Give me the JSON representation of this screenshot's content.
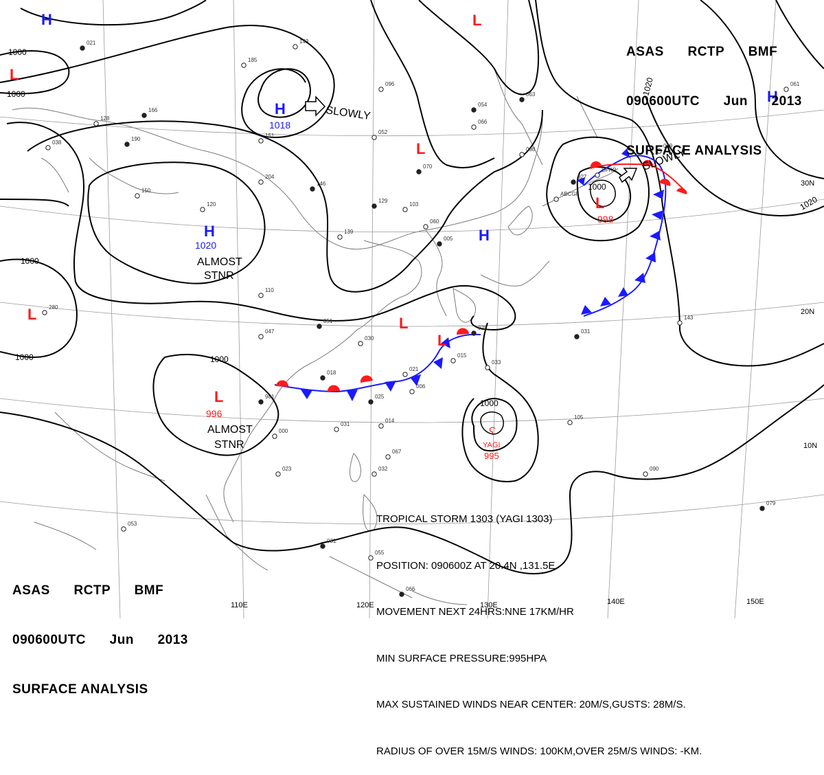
{
  "header_top": {
    "line1": [
      "ASAS",
      "RCTP",
      "BMF"
    ],
    "line2": [
      "090600UTC",
      "Jun",
      "2013"
    ],
    "line3": "SURFACE ANALYSIS"
  },
  "header_bottom": {
    "line1": [
      "ASAS",
      "RCTP",
      "BMF"
    ],
    "line2": [
      "090600UTC",
      "Jun",
      "2013"
    ],
    "line3": "SURFACE ANALYSIS"
  },
  "storm_info": [
    "TROPICAL STORM 1303 (YAGI 1303)",
    "POSITION: 090600Z AT 20.4N ,131.5E.",
    "MOVEMENT NEXT 24HRS:NNE 17KM/HR",
    "MIN SURFACE PRESSURE:995HPA",
    "MAX SUSTAINED WINDS NEAR CENTER: 20M/S,GUSTS: 28M/S.",
    "RADIUS OF OVER 15M/S WINDS: 100KM,OVER 25M/S WINDS: -KM."
  ],
  "longitude_labels": [
    "110E",
    "120E",
    "130E",
    "140E",
    "150E"
  ],
  "latitude_labels": [
    "30N",
    "20N",
    "10N"
  ],
  "isobar_labels": [
    {
      "id": "iso-1000-nw-a",
      "text": "1000"
    },
    {
      "id": "iso-1000-nw-b",
      "text": "1000"
    },
    {
      "id": "iso-1000-w-a",
      "text": "1000"
    },
    {
      "id": "iso-1000-w-b",
      "text": "1000"
    },
    {
      "id": "iso-1000-scs",
      "text": "1000"
    },
    {
      "id": "iso-1000-yagi",
      "text": "1000"
    },
    {
      "id": "iso-1000-japan",
      "text": "1000"
    },
    {
      "id": "iso-1020-ne-a",
      "text": "1020"
    },
    {
      "id": "iso-1020-ne-b",
      "text": "1020"
    }
  ],
  "pressure_systems": [
    {
      "id": "high-nw-corner",
      "type": "H",
      "color": "#1a1aff"
    },
    {
      "id": "low-w-edge",
      "type": "L",
      "color": "#ff1a1a"
    },
    {
      "id": "high-mongolia",
      "type": "H",
      "color": "#1a1aff",
      "value": "1018"
    },
    {
      "id": "high-tibet",
      "type": "H",
      "color": "#1a1aff",
      "value": "1020"
    },
    {
      "id": "low-far-west",
      "type": "L",
      "color": "#ff1a1a"
    },
    {
      "id": "low-north",
      "type": "L",
      "color": "#ff1a1a"
    },
    {
      "id": "low-north-china",
      "type": "L",
      "color": "#ff1a1a"
    },
    {
      "id": "high-east-china-sea",
      "type": "H",
      "color": "#1a1aff"
    },
    {
      "id": "high-ne-corner",
      "type": "H",
      "color": "#1a1aff"
    },
    {
      "id": "low-japan",
      "type": "L",
      "color": "#ff1a1a",
      "value": "998"
    },
    {
      "id": "low-south-china",
      "type": "L",
      "color": "#ff1a1a"
    },
    {
      "id": "low-taiwan",
      "type": "L",
      "color": "#ff1a1a"
    },
    {
      "id": "low-indochina",
      "type": "L",
      "color": "#ff1a1a",
      "value": "996"
    }
  ],
  "tropical_storm": {
    "name": "YAGI",
    "pressure": "995",
    "color": "#ff1a1a"
  },
  "movement_labels": [
    {
      "id": "move-slowly-mongolia",
      "text": "SLOWLY"
    },
    {
      "id": "move-slowly-japan",
      "text": "SLOWLY"
    },
    {
      "id": "move-stnr-tibet",
      "text": "ALMOST\nSTNR"
    },
    {
      "id": "move-stnr-indochina",
      "text": "ALMOST\nSTNR"
    }
  ],
  "station_numbers": [
    "021",
    "143",
    "185",
    "166",
    "151",
    "204",
    "146",
    "120",
    "139",
    "129",
    "096",
    "052",
    "070",
    "103",
    "060",
    "054",
    "066",
    "098",
    "063",
    "128",
    "038",
    "190",
    "150",
    "110",
    "051",
    "047",
    "030",
    "018",
    "021",
    "015",
    "025",
    "033",
    "031",
    "025",
    "014",
    "006",
    "981",
    "000",
    "023",
    "031",
    "055",
    "053",
    "066",
    "067",
    "032",
    "031",
    "105",
    "090",
    "079",
    "061",
    "280",
    "927",
    "ABCGF",
    "DFKP",
    "005",
    "143",
    "029"
  ]
}
